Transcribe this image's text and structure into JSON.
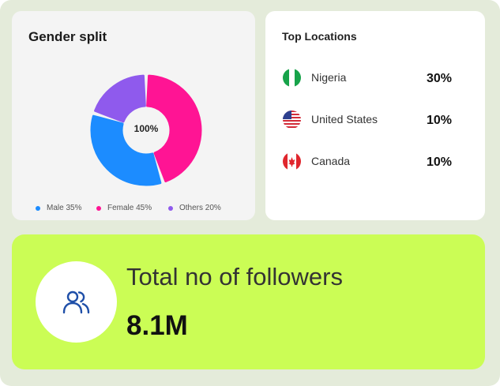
{
  "gender": {
    "title": "Gender split",
    "center_label": "100%",
    "segments": [
      {
        "label": "Male 35%",
        "value": 35,
        "color": "#1c8cff"
      },
      {
        "label": "Female 45%",
        "value": 45,
        "color": "#ff1494"
      },
      {
        "label": "Others 20%",
        "value": 20,
        "color": "#8f5aed"
      }
    ]
  },
  "locations": {
    "title": "Top Locations",
    "items": [
      {
        "name": "Nigeria",
        "pct": "30%",
        "flag": "nigeria-flag-icon"
      },
      {
        "name": "United States",
        "pct": "10%",
        "flag": "us-flag-icon"
      },
      {
        "name": "Canada",
        "pct": "10%",
        "flag": "canada-flag-icon"
      }
    ]
  },
  "followers": {
    "label": "Total no of followers",
    "value": "8.1M",
    "icon": "users-icon"
  },
  "colors": {
    "frame": "#e4ebda",
    "followers_bg": "#cbfd55",
    "icon_blue": "#1f4fa8"
  }
}
